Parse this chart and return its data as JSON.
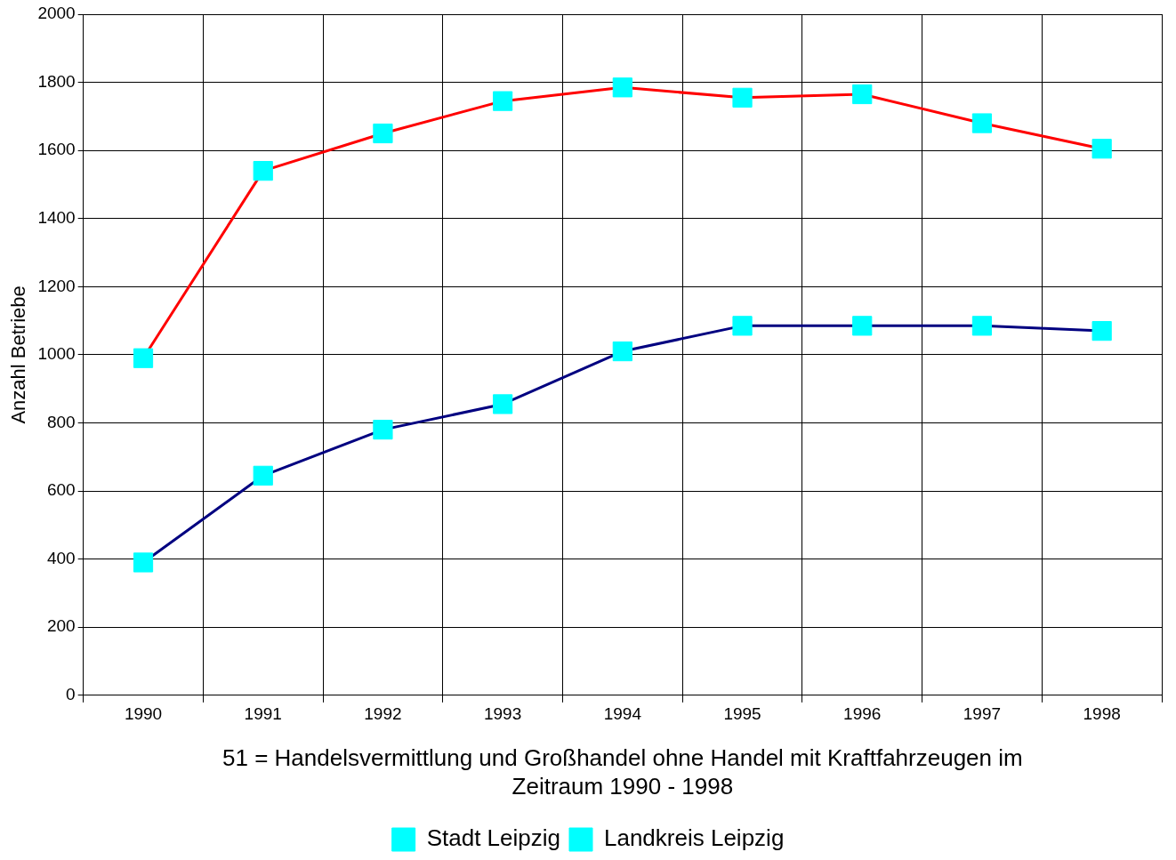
{
  "chart_data": {
    "type": "line",
    "xlabel": "51 = Handelsvermittlung und Großhandel ohne Handel mit Kraftfahrzeugen im Zeitraum 1990 - 1998",
    "ylabel": "Anzahl Betriebe",
    "categories": [
      "1990",
      "1991",
      "1992",
      "1993",
      "1994",
      "1995",
      "1996",
      "1997",
      "1998"
    ],
    "series": [
      {
        "name": "Stadt Leipzig",
        "color": "#ff0000",
        "values": [
          990,
          1540,
          1650,
          1745,
          1785,
          1755,
          1765,
          1680,
          1605
        ]
      },
      {
        "name": "Landkreis Leipzig",
        "color": "#000080",
        "values": [
          390,
          645,
          780,
          855,
          1010,
          1085,
          1085,
          1085,
          1070
        ]
      }
    ],
    "ylim": [
      0,
      2000
    ],
    "yticks": [
      0,
      200,
      400,
      600,
      800,
      1000,
      1200,
      1400,
      1600,
      1800,
      2000
    ],
    "grid": true,
    "legend": "bottom",
    "marker": "square",
    "line_style": "solid"
  }
}
